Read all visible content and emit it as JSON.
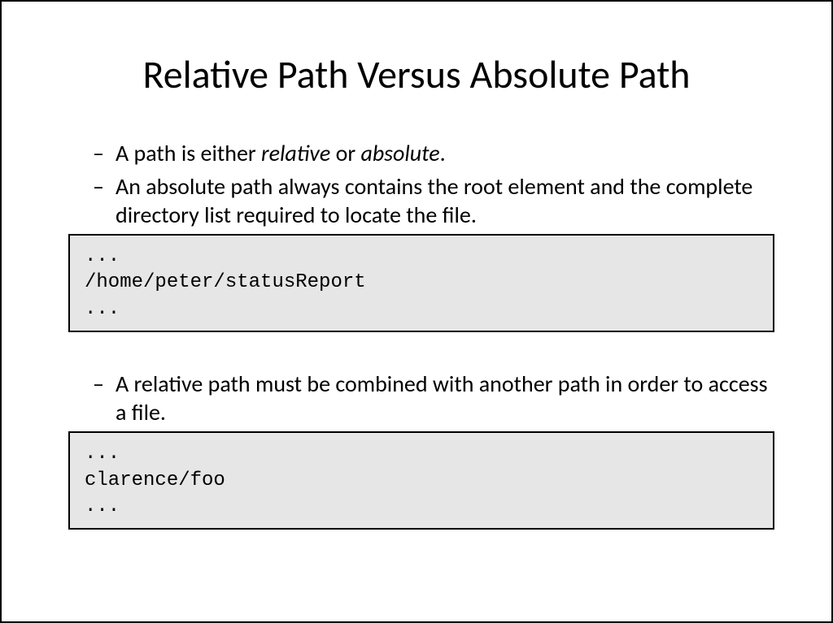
{
  "title": "Relative Path Versus Absolute Path",
  "bullets": {
    "b1_pre": "A path is either ",
    "b1_i1": "relative",
    "b1_mid": " or ",
    "b1_i2": "absolute",
    "b1_post": ".",
    "b2": "An absolute path always contains the root element and the complete directory list required to locate the file.",
    "b3": "A relative path must be combined with another path in order to access a file."
  },
  "code1": {
    "l1": "...",
    "l2": "/home/peter/statusReport",
    "l3": "..."
  },
  "code2": {
    "l1": "...",
    "l2": "clarence/foo",
    "l3": "..."
  },
  "colors": {
    "background": "#ffffff",
    "text": "#000000",
    "codebox_bg": "#e6e6e6",
    "border": "#000000"
  },
  "typography": {
    "title_fontsize": 48,
    "body_fontsize": 28,
    "code_fontsize": 24,
    "body_font": "Calibri",
    "code_font": "Courier New"
  }
}
